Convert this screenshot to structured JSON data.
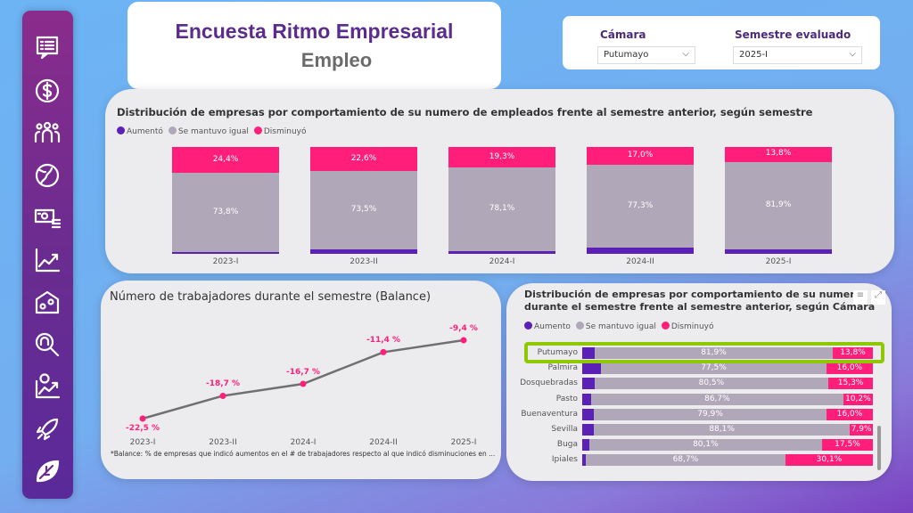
{
  "sidebar": {
    "items": [
      {
        "icon": "survey-chat-icon"
      },
      {
        "icon": "dollar-coin-icon"
      },
      {
        "icon": "people-group-icon"
      },
      {
        "icon": "globe-icon"
      },
      {
        "icon": "money-bills-icon"
      },
      {
        "icon": "trend-chart-icon"
      },
      {
        "icon": "factory-gears-icon"
      },
      {
        "icon": "search-people-icon"
      },
      {
        "icon": "dollar-growth-icon"
      },
      {
        "icon": "rocket-icon"
      },
      {
        "icon": "leaf-icon"
      }
    ]
  },
  "header": {
    "title": "Encuesta Ritmo Empresarial",
    "subtitle": "Empleo"
  },
  "filters": {
    "camara_label": "Cámara",
    "camara_value": "Putumayo",
    "semestre_label": "Semestre evaluado",
    "semestre_value": "2025-I"
  },
  "colors": {
    "aumento": "#5b21b6",
    "igual": "#b0a8b9",
    "disminuyo": "#ff1f7a",
    "highlight": "#8dc800",
    "line": "#707070"
  },
  "chart_data": [
    {
      "type": "bar",
      "stacked": true,
      "title": "Distribución de empresas por comportamiento de su numero de empleados frente al semestre anterior, según semestre",
      "legend": [
        "Aumentó",
        "Se mantuvo igual",
        "Disminuyó"
      ],
      "legend_position": "top-left",
      "categories": [
        "2023-I",
        "2023-II",
        "2024-I",
        "2024-II",
        "2025-I"
      ],
      "series": [
        {
          "name": "Aumentó",
          "values": [
            1.8,
            3.9,
            2.6,
            5.7,
            4.3
          ]
        },
        {
          "name": "Se mantuvo igual",
          "values": [
            73.8,
            73.5,
            78.1,
            77.3,
            81.9
          ],
          "labels": [
            "73,8%",
            "73,5%",
            "78,1%",
            "77,3%",
            "81,9%"
          ]
        },
        {
          "name": "Disminuyó",
          "values": [
            24.4,
            22.6,
            19.3,
            17.0,
            13.8
          ],
          "labels": [
            "24,4%",
            "22,6%",
            "19,3%",
            "17,0%",
            "13,8%"
          ]
        }
      ]
    },
    {
      "type": "line",
      "title": "Número de trabajadores durante el semestre (Balance)",
      "categories": [
        "2023-I",
        "2023-II",
        "2024-I",
        "2024-II",
        "2025-I"
      ],
      "values": [
        -22.5,
        -18.7,
        -16.7,
        -11.4,
        -9.4
      ],
      "labels": [
        "-22,5 %",
        "-18,7 %",
        "-16,7 %",
        "-11,4 %",
        "-9,4 %"
      ],
      "footnote": "*Balance: % de empresas que indicó aumentos en el # de trabajadores respecto al que indicó disminuciones en ..."
    },
    {
      "type": "bar",
      "stacked": true,
      "orientation": "horizontal",
      "title_line1": "Distribución de empresas por comportamiento de su numero de emplea",
      "title_line2": "durante el semestre frente al semestre anterior, según Cámara",
      "legend": [
        "Aumento",
        "Se mantuvo igual",
        "Disminuyó"
      ],
      "legend_position": "top-left",
      "categories": [
        "Putumayo",
        "Palmira",
        "Dosquebradas",
        "Pasto",
        "Buenaventura",
        "Sevilla",
        "Buga",
        "Ipiales"
      ],
      "highlighted": "Putumayo",
      "series": [
        {
          "name": "Aumento",
          "values": [
            4.3,
            6.5,
            4.2,
            3.1,
            4.1,
            4.0,
            2.4,
            1.2
          ]
        },
        {
          "name": "Se mantuvo igual",
          "values": [
            81.9,
            77.5,
            80.5,
            86.7,
            79.9,
            88.1,
            80.1,
            68.7
          ],
          "labels": [
            "81,9%",
            "77,5%",
            "80,5%",
            "86,7%",
            "79,9%",
            "88,1%",
            "80,1%",
            "68,7%"
          ]
        },
        {
          "name": "Disminuyó",
          "values": [
            13.8,
            16.0,
            15.3,
            10.2,
            16.0,
            7.9,
            17.5,
            30.1
          ],
          "labels": [
            "13,8%",
            "16,0%",
            "15,3%",
            "10,2%",
            "16,0%",
            "7,9%",
            "17,5%",
            "30,1%"
          ]
        }
      ]
    }
  ]
}
